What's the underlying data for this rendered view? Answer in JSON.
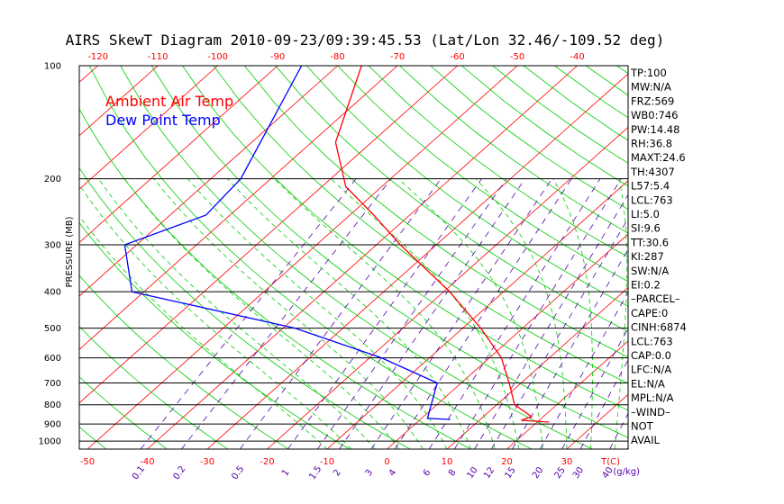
{
  "chart_data": {
    "type": "line",
    "title": "AIRS SkewT Diagram 2010-09-23/09:39:45.53 (Lat/Lon 32.46/-109.52 deg)",
    "ylabel": "PRESSURE (MB)",
    "pressure_ticks": [
      "100",
      "200",
      "300",
      "400",
      "500",
      "600",
      "700",
      "800",
      "900",
      "1000"
    ],
    "top_temp_ticks": [
      "-120",
      "-110",
      "-100",
      "-90",
      "-80",
      "-70",
      "-60",
      "-50",
      "-40"
    ],
    "bottom_temp_ticks": [
      "-50",
      "-40",
      "-30",
      "-20",
      "-10",
      "0",
      "10",
      "20",
      "30"
    ],
    "temp_unit_label": "T(C)",
    "mixing_ratio_labels": [
      "0.1",
      "0.2",
      "0.5",
      "1",
      "1.5",
      "2",
      "3",
      "4",
      "6",
      "8",
      "10",
      "12",
      "15",
      "20",
      "25",
      "30",
      "40"
    ],
    "mixing_ratio_unit": "(g/kg)",
    "legend": [
      {
        "label": "Ambient Air Temp",
        "color": "#ff0000"
      },
      {
        "label": "Dew Point Temp",
        "color": "#0000ff"
      }
    ],
    "series": [
      {
        "name": "Ambient Air Temp",
        "color": "#ff0000",
        "points": [
          {
            "p": 100,
            "t": -76
          },
          {
            "p": 160,
            "t": -66
          },
          {
            "p": 210,
            "t": -56
          },
          {
            "p": 250,
            "t": -46
          },
          {
            "p": 300,
            "t": -36
          },
          {
            "p": 400,
            "t": -19
          },
          {
            "p": 500,
            "t": -7
          },
          {
            "p": 600,
            "t": 2
          },
          {
            "p": 700,
            "t": 8
          },
          {
            "p": 800,
            "t": 13
          },
          {
            "p": 860,
            "t": 18
          },
          {
            "p": 880,
            "t": 17
          },
          {
            "p": 890,
            "t": 22
          }
        ]
      },
      {
        "name": "Dew Point Temp",
        "color": "#0000ff",
        "points": [
          {
            "p": 100,
            "t": -86
          },
          {
            "p": 200,
            "t": -75
          },
          {
            "p": 250,
            "t": -74
          },
          {
            "p": 300,
            "t": -82
          },
          {
            "p": 400,
            "t": -72
          },
          {
            "p": 500,
            "t": -38
          },
          {
            "p": 600,
            "t": -18
          },
          {
            "p": 700,
            "t": -4
          },
          {
            "p": 870,
            "t": 1
          },
          {
            "p": 875,
            "t": 5
          }
        ]
      }
    ],
    "indices": [
      "TP:100",
      "MW:N/A",
      "FRZ:569",
      "WB0:746",
      "PW:14.48",
      "RH:36.8",
      "MAXT:24.6",
      "TH:4307",
      "L57:5.4",
      "LCL:763",
      "LI:5.0",
      "SI:9.6",
      "TT:30.6",
      "KI:287",
      "SW:N/A",
      "EI:0.2",
      "–PARCEL–",
      "CAPE:0",
      "CINH:6874",
      "LCL:763",
      "CAP:0.0",
      "LFC:N/A",
      "EL:N/A",
      "MPL:N/A",
      "–WIND–",
      "NOT",
      "AVAIL"
    ],
    "colors": {
      "temp_isotherms": "#ff0000",
      "dry_adiabats": "#00cc00",
      "moist_adiabats": "#00cc00",
      "mixing_ratio_lines": "#5500aa",
      "temp_labels": "#ff0000",
      "mixing_labels": "#5500aa",
      "isobars": "#000000"
    }
  }
}
